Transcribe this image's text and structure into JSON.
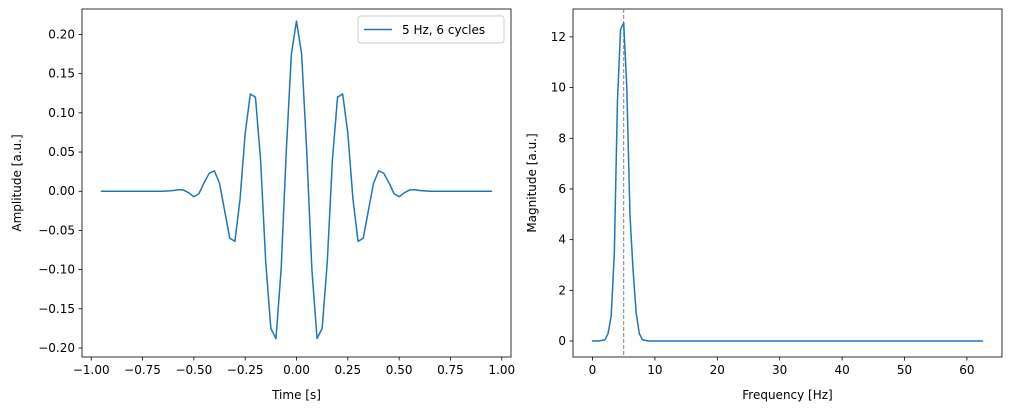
{
  "chart_data": [
    {
      "type": "line",
      "xlabel": "Time [s]",
      "ylabel": "Amplitude [a.u.]",
      "xlim": [
        -1.045,
        1.045
      ],
      "ylim": [
        -0.2115,
        0.2325
      ],
      "xticks": [
        -1.0,
        -0.75,
        -0.5,
        -0.25,
        0.0,
        0.25,
        0.5,
        0.75,
        1.0
      ],
      "xtick_labels": [
        "−1.00",
        "−0.75",
        "−0.50",
        "−0.25",
        "0.00",
        "0.25",
        "0.50",
        "0.75",
        "1.00"
      ],
      "yticks": [
        -0.2,
        -0.15,
        -0.1,
        -0.05,
        0.0,
        0.05,
        0.1,
        0.15,
        0.2
      ],
      "ytick_labels": [
        "−0.20",
        "−0.15",
        "−0.10",
        "−0.05",
        "0.00",
        "0.05",
        "0.10",
        "0.15",
        "0.20"
      ],
      "grid": false,
      "legend": "upper right",
      "series": [
        {
          "name": "5 Hz, 6 cycles",
          "color": "#1f77b4",
          "x": [
            -0.95,
            -0.9,
            -0.85,
            -0.8,
            -0.75,
            -0.7,
            -0.65,
            -0.6,
            -0.575,
            -0.55,
            -0.525,
            -0.5,
            -0.475,
            -0.45,
            -0.425,
            -0.4,
            -0.375,
            -0.35,
            -0.325,
            -0.3,
            -0.275,
            -0.25,
            -0.225,
            -0.2,
            -0.175,
            -0.15,
            -0.125,
            -0.1,
            -0.075,
            -0.05,
            -0.025,
            0.0,
            0.025,
            0.05,
            0.075,
            0.1,
            0.125,
            0.15,
            0.175,
            0.2,
            0.225,
            0.25,
            0.275,
            0.3,
            0.325,
            0.35,
            0.375,
            0.4,
            0.425,
            0.45,
            0.475,
            0.5,
            0.525,
            0.55,
            0.575,
            0.6,
            0.65,
            0.7,
            0.75,
            0.8,
            0.85,
            0.9,
            0.95
          ],
          "y": [
            0.0,
            0.0,
            0.0,
            0.0,
            0.0,
            0.0,
            0.0,
            0.001,
            0.002,
            0.0015,
            -0.002,
            -0.007,
            -0.003,
            0.011,
            0.023,
            0.026,
            0.01,
            -0.025,
            -0.06,
            -0.064,
            -0.01,
            0.074,
            0.124,
            0.12,
            0.04,
            -0.09,
            -0.175,
            -0.188,
            -0.1,
            0.05,
            0.175,
            0.217,
            0.175,
            0.05,
            -0.1,
            -0.188,
            -0.175,
            -0.09,
            0.04,
            0.12,
            0.124,
            0.074,
            -0.01,
            -0.064,
            -0.06,
            -0.025,
            0.01,
            0.026,
            0.023,
            0.011,
            -0.003,
            -0.007,
            -0.002,
            0.0015,
            0.002,
            0.001,
            0.0,
            0.0,
            0.0,
            0.0,
            0.0,
            0.0,
            0.0
          ]
        }
      ]
    },
    {
      "type": "line",
      "xlabel": "Frequency [Hz]",
      "ylabel": "Magnitude [a.u.]",
      "xlim": [
        -3.125,
        65.625
      ],
      "ylim": [
        -0.63,
        13.1
      ],
      "xticks": [
        0,
        10,
        20,
        30,
        40,
        50,
        60
      ],
      "xtick_labels": [
        "0",
        "10",
        "20",
        "30",
        "40",
        "50",
        "60"
      ],
      "yticks": [
        0,
        2,
        4,
        6,
        8,
        10,
        12
      ],
      "ytick_labels": [
        "0",
        "2",
        "4",
        "6",
        "8",
        "10",
        "12"
      ],
      "grid": false,
      "vline": {
        "x": 5,
        "color": "#808080",
        "style": "dashed"
      },
      "series": [
        {
          "color": "#1f77b4",
          "x": [
            0,
            1,
            2,
            2.5,
            3,
            3.5,
            4,
            4.5,
            5,
            5.5,
            6,
            6.5,
            7,
            7.5,
            8,
            9,
            10,
            15,
            20,
            30,
            40,
            50,
            62.5
          ],
          "y": [
            0.0,
            0.0,
            0.05,
            0.3,
            1.0,
            3.5,
            9.5,
            12.3,
            12.55,
            10.0,
            5.0,
            2.8,
            1.1,
            0.3,
            0.05,
            0.0,
            0.0,
            0.0,
            0.0,
            0.0,
            0.0,
            0.0,
            0.0
          ]
        }
      ]
    }
  ]
}
